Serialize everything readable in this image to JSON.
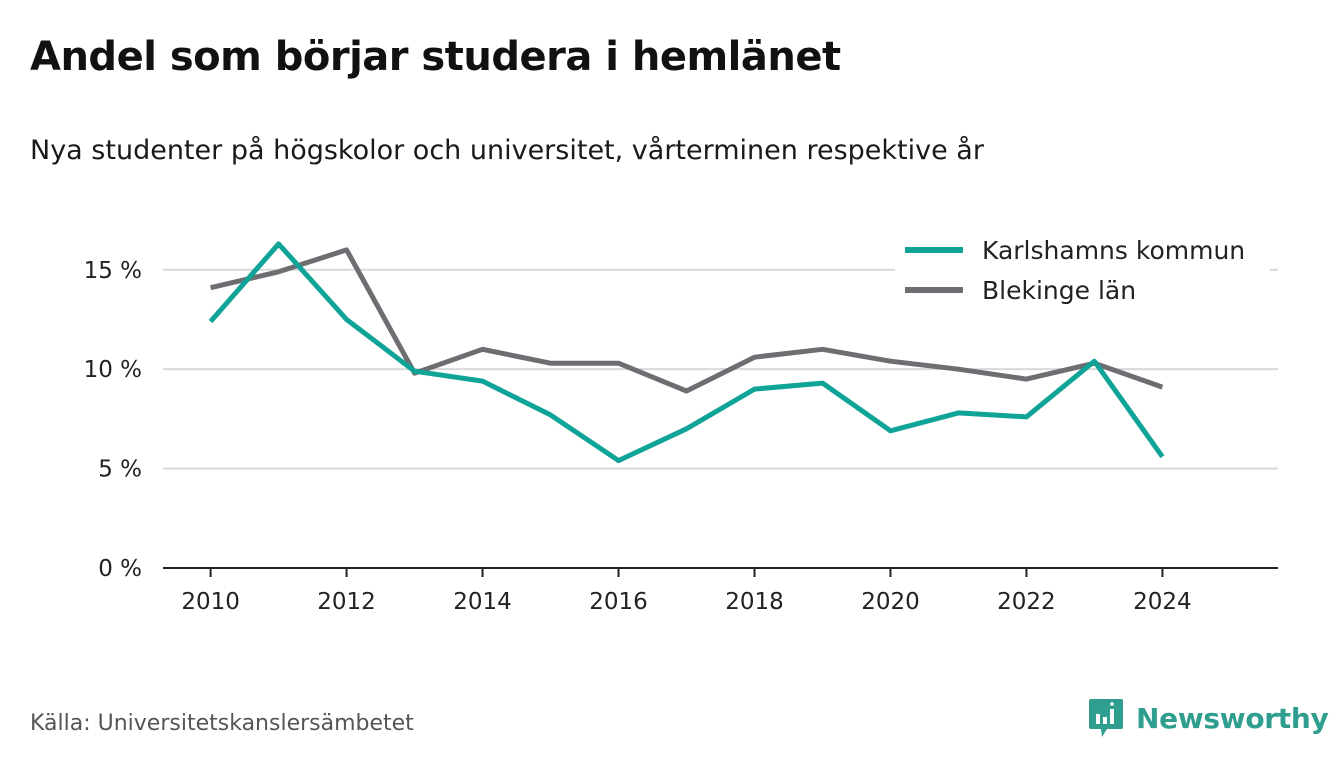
{
  "header": {
    "title": "Andel som börjar studera i hemlänet",
    "subtitle": "Nya studenter på högskolor och universitet, vårterminen respektive år"
  },
  "footer": {
    "source": "Källa: Universitetskanslersämbetet",
    "brand": "Newsworthy",
    "brand_icon": "bar-chart-icon"
  },
  "colors": {
    "karlshamn": "#0fa497",
    "blekinge": "#6e6d72",
    "grid": "#d9d9d9",
    "axis": "#222222",
    "brand": "#2f9e8f"
  },
  "chart_data": {
    "type": "line",
    "title": "Andel som börjar studera i hemlänet",
    "subtitle": "Nya studenter på högskolor och universitet, vårterminen respektive år",
    "xlabel": "",
    "ylabel": "",
    "x": [
      2010,
      2011,
      2012,
      2013,
      2014,
      2015,
      2016,
      2017,
      2018,
      2019,
      2020,
      2021,
      2022,
      2023,
      2024
    ],
    "series": [
      {
        "name": "Karlshamns kommun",
        "values": [
          12.4,
          16.3,
          12.5,
          9.9,
          9.4,
          7.7,
          5.4,
          7.0,
          9.0,
          9.3,
          6.9,
          7.8,
          7.6,
          10.4,
          5.6
        ]
      },
      {
        "name": "Blekinge län",
        "values": [
          14.1,
          14.9,
          16.0,
          9.8,
          11.0,
          10.3,
          10.3,
          8.9,
          10.6,
          11.0,
          10.4,
          10.0,
          9.5,
          10.3,
          9.1
        ]
      }
    ],
    "xlim": [
      2009.3,
      2025.7
    ],
    "ylim": [
      0,
      17
    ],
    "yticks": [
      0,
      5,
      10,
      15
    ],
    "ytick_labels": [
      "0 %",
      "5 %",
      "10 %",
      "15 %"
    ],
    "xticks": [
      2010,
      2012,
      2014,
      2016,
      2018,
      2020,
      2022,
      2024
    ],
    "xtick_labels": [
      "2010",
      "2012",
      "2014",
      "2016",
      "2018",
      "2020",
      "2022",
      "2024"
    ],
    "grid": true,
    "legend_position": "top-right"
  }
}
